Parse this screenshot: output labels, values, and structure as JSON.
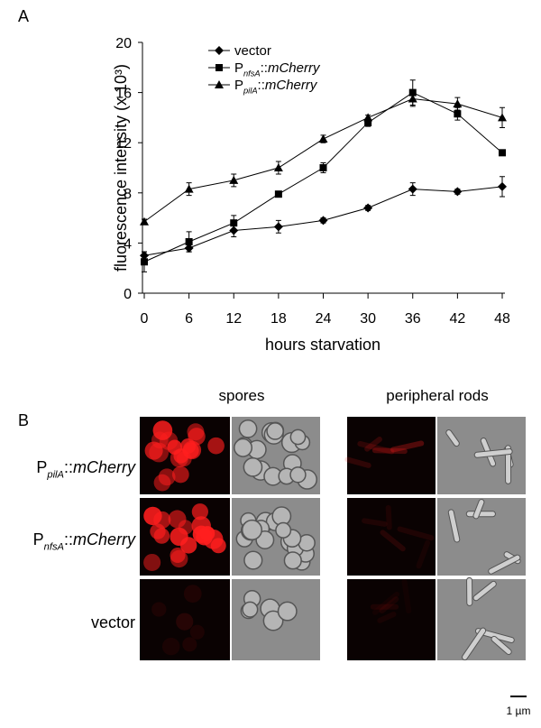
{
  "chart_data": {
    "type": "line",
    "panel_label": "A",
    "xlabel": "hours starvation",
    "ylabel": "fluorescence intensity (x 10³)",
    "x": [
      0,
      6,
      12,
      18,
      24,
      30,
      36,
      42,
      48
    ],
    "xlim": [
      0,
      48
    ],
    "xticks": [
      0,
      6,
      12,
      18,
      24,
      30,
      36,
      42,
      48
    ],
    "ylim": [
      0,
      20
    ],
    "yticks": [
      0,
      4,
      8,
      12,
      16,
      20
    ],
    "legend": "upper left",
    "series": [
      {
        "name": "vector",
        "color": "#000000",
        "marker": "diamond",
        "values": [
          3.0,
          3.6,
          5.0,
          5.3,
          5.8,
          6.8,
          8.3,
          8.1,
          8.5
        ],
        "errors": [
          0.3,
          0.3,
          0.5,
          0.5,
          0.2,
          0.2,
          0.5,
          0.2,
          0.8
        ]
      },
      {
        "name": "PnfsA::mCherry",
        "color": "#000000",
        "marker": "square",
        "values": [
          2.5,
          4.1,
          5.6,
          7.9,
          10.0,
          13.6,
          16.0,
          14.3,
          11.2
        ],
        "errors": [
          0.8,
          0.8,
          0.6,
          0.2,
          0.4,
          0.3,
          1.0,
          0.5,
          0.2
        ]
      },
      {
        "name": "PpilA::mCherry",
        "color": "#000000",
        "marker": "triangle",
        "values": [
          5.7,
          8.3,
          9.0,
          10.0,
          12.3,
          14.0,
          15.5,
          15.1,
          14.0
        ],
        "errors": [
          0.2,
          0.5,
          0.5,
          0.5,
          0.3,
          0.2,
          0.6,
          0.5,
          0.8
        ]
      }
    ]
  },
  "figure": {
    "panel_label": "B",
    "columns": [
      "spores",
      "peripheral rods"
    ],
    "rows": [
      "PpilA::mCherry",
      "PnfsA::mCherry",
      "vector"
    ],
    "scale_bar": "1 µm"
  }
}
